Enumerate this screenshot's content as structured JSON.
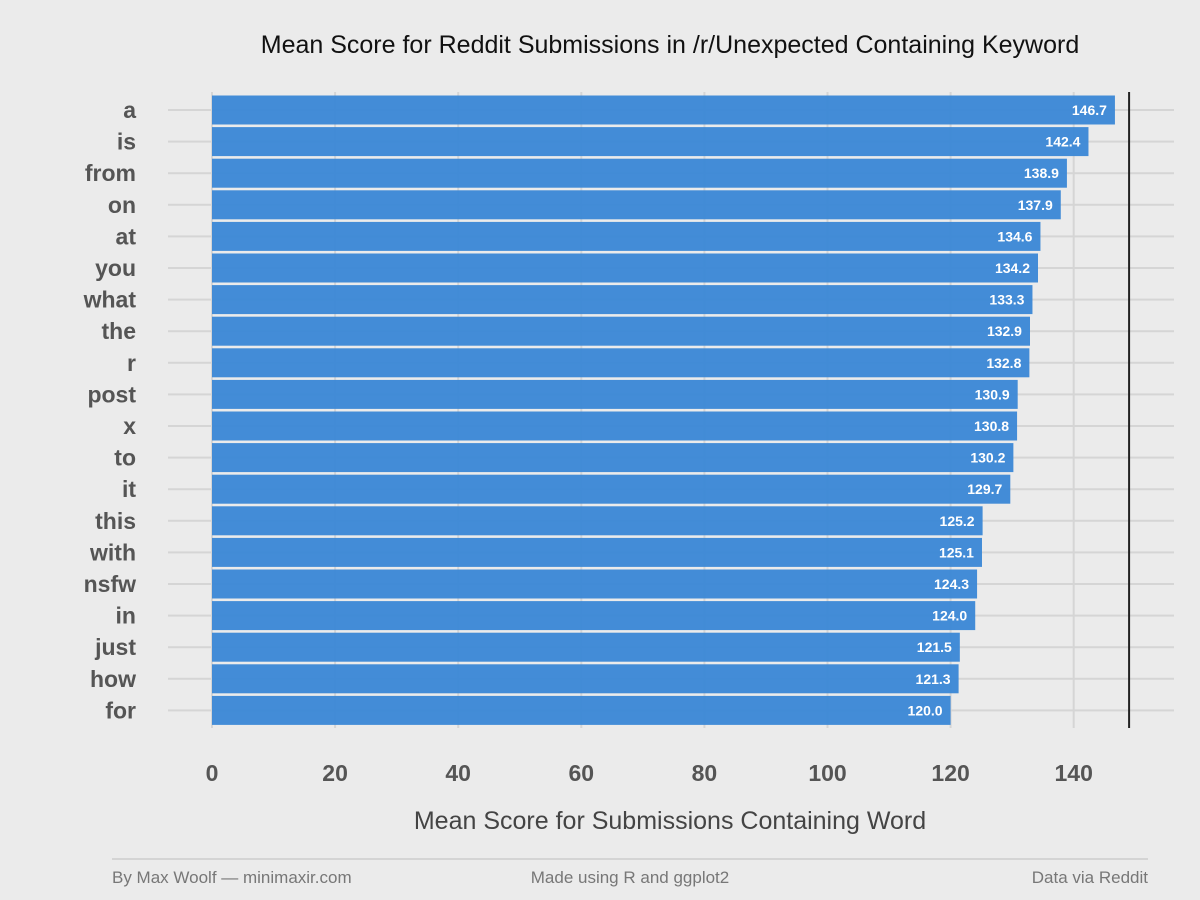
{
  "chart_data": {
    "type": "bar",
    "orientation": "horizontal",
    "title": "Mean Score for Reddit Submissions in /r/Unexpected Containing Keyword",
    "xlabel": "Mean Score for Submissions Containing Word",
    "ylabel": "",
    "categories": [
      "a",
      "is",
      "from",
      "on",
      "at",
      "you",
      "what",
      "the",
      "r",
      "post",
      "x",
      "to",
      "it",
      "this",
      "with",
      "nsfw",
      "in",
      "just",
      "how",
      "for"
    ],
    "values": [
      146.7,
      142.4,
      138.9,
      137.9,
      134.6,
      134.2,
      133.3,
      132.9,
      132.8,
      130.9,
      130.8,
      130.2,
      129.7,
      125.2,
      125.1,
      124.3,
      124.0,
      121.5,
      121.3,
      120.0
    ],
    "data_labels": [
      "146.7",
      "142.4",
      "138.9",
      "137.9",
      "134.6",
      "134.2",
      "133.3",
      "132.9",
      "132.8",
      "130.9",
      "130.8",
      "130.2",
      "129.7",
      "125.2",
      "125.1",
      "124.3",
      "124.0",
      "121.5",
      "121.3",
      "120.0"
    ],
    "x_ticks": [
      "0",
      "20",
      "40",
      "60",
      "80",
      "100",
      "120",
      "140"
    ],
    "xlim": [
      0,
      149
    ],
    "reference_line": 149,
    "grid": true,
    "legend": "none",
    "bar_color": "#3a87d6",
    "background_color": "#ebebeb"
  },
  "footer": {
    "left": "By Max Woolf — minimaxir.com",
    "center": "Made using R and ggplot2",
    "right": "Data via Reddit"
  }
}
